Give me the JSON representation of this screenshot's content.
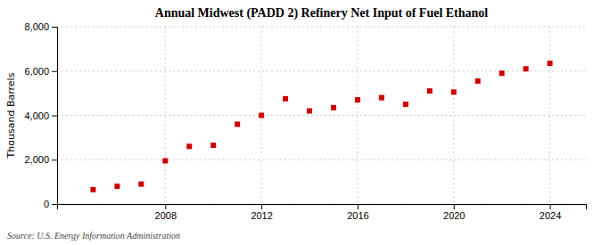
{
  "chart_data": {
    "type": "scatter",
    "title": "Annual Midwest (PADD 2) Refinery Net Input of Fuel Ethanol",
    "y_label": "Thousand Barrels",
    "source": "Source: U.S. Energy Information Administration",
    "x": [
      2005,
      2006,
      2007,
      2008,
      2009,
      2010,
      2011,
      2012,
      2013,
      2014,
      2015,
      2016,
      2017,
      2018,
      2019,
      2020,
      2021,
      2022,
      2023,
      2024
    ],
    "values": [
      650,
      800,
      900,
      1950,
      2600,
      2650,
      3600,
      4000,
      4750,
      4200,
      4350,
      4700,
      4800,
      4500,
      5100,
      5050,
      5550,
      5900,
      6100,
      6350
    ],
    "color": "#cc0000",
    "marker": "square",
    "xlim": [
      2003.5,
      2025.5
    ],
    "xticks": [
      2008,
      2012,
      2016,
      2020,
      2024
    ],
    "ylim": [
      0,
      8000
    ],
    "yticks": [
      0,
      {
        "value": 2000,
        "label": "2,000"
      },
      {
        "value": 4000,
        "label": "4,000"
      },
      {
        "value": 6000,
        "label": "6,000"
      },
      {
        "value": 8000,
        "label": "8,000"
      }
    ],
    "grid": true
  }
}
